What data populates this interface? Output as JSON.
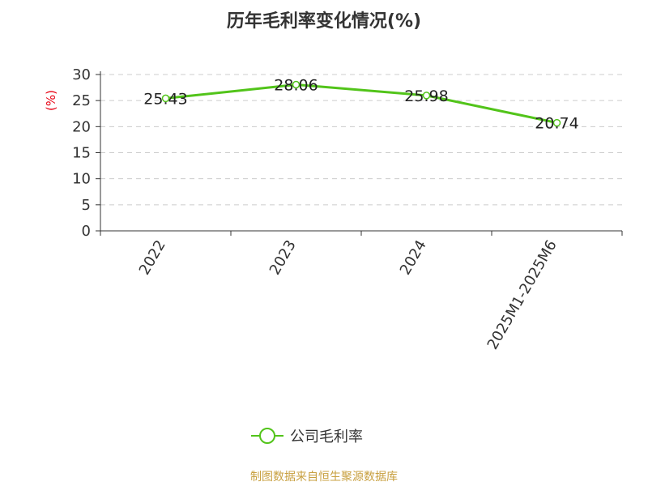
{
  "title": "历年毛利率变化情况(%)",
  "source": "制图数据来自恒生聚源数据库",
  "colors": {
    "line": "#52c41a",
    "ylabel": "#e60012",
    "grid": "#cccccc",
    "text": "#333333"
  },
  "chart_data": {
    "type": "line",
    "title": "历年毛利率变化情况(%)",
    "xlabel": "",
    "ylabel": "(%)",
    "categories": [
      "2022",
      "2023",
      "2024",
      "2025M1-2025M6"
    ],
    "series": [
      {
        "name": "公司毛利率",
        "values": [
          25.43,
          28.06,
          25.98,
          20.74
        ],
        "labels": [
          "25.43",
          "28.06",
          "25.98",
          "20.74"
        ]
      }
    ],
    "ylim": [
      0,
      30
    ],
    "yticks": [
      0,
      5,
      10,
      15,
      20,
      25,
      30
    ],
    "grid": "horizontal-dashed",
    "legend": "bottom-center"
  }
}
